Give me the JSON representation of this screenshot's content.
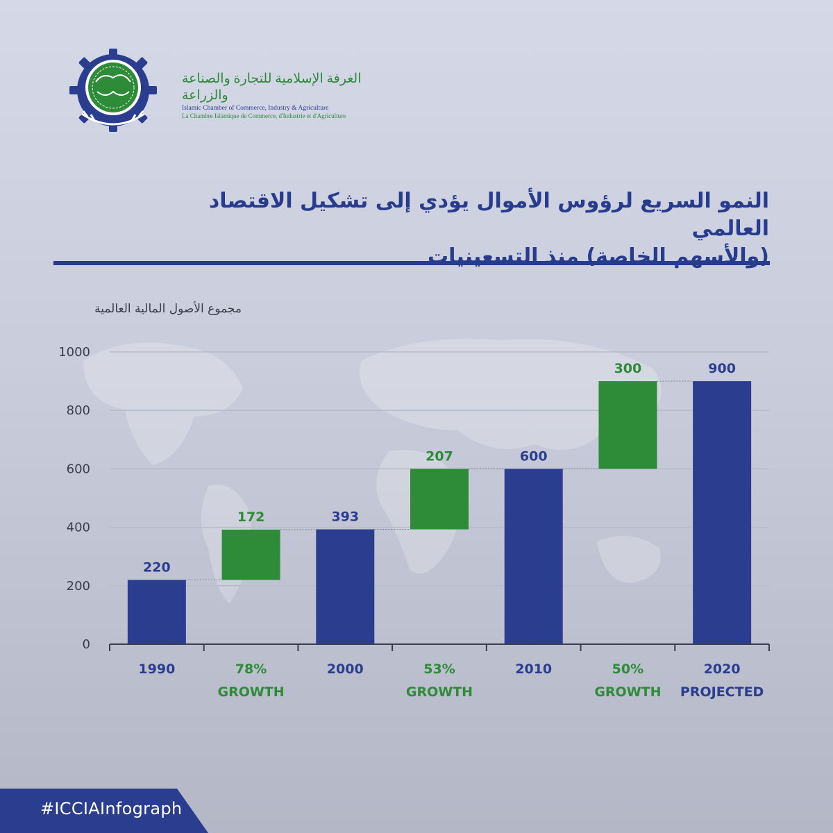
{
  "organization": {
    "name_ar": "الغرفة الإسلامية للتجارة والصناعة والزراعة",
    "name_en": "Islamic Chamber of Commerce, Industry & Agriculture",
    "name_fr": "La Chambre Islamique de Commerce, d'Industrie et d'Agriculture"
  },
  "title_line1": "النمو السريع لرؤوس الأموال يؤدي إلى تشكيل الاقتصاد العالمي",
  "title_line2": "(والأسهم الخاصة) منذ التسعينيات",
  "hashtag": "#ICCIAInfograph",
  "colors": {
    "total": "#2a3d8f",
    "growth": "#2e8b38",
    "growth_text": "#2e8b38",
    "total_text": "#2a3d8f",
    "accent": "#283c8e"
  },
  "chart_data": {
    "type": "bar",
    "subtype": "waterfall",
    "ylabel": "مجموع الأصول المالية العالمية",
    "ylim": [
      0,
      1000
    ],
    "yticks": [
      0,
      200,
      400,
      600,
      800,
      1000
    ],
    "grid": true,
    "bars": [
      {
        "label": [
          "1990"
        ],
        "kind": "total",
        "base": 0,
        "value": 220,
        "value_label": "220"
      },
      {
        "label": [
          "78%",
          "GROWTH"
        ],
        "kind": "growth",
        "base": 220,
        "value": 172,
        "value_label": "172"
      },
      {
        "label": [
          "2000"
        ],
        "kind": "total",
        "base": 0,
        "value": 393,
        "value_label": "393"
      },
      {
        "label": [
          "53%",
          "GROWTH"
        ],
        "kind": "growth",
        "base": 393,
        "value": 207,
        "value_label": "207"
      },
      {
        "label": [
          "2010"
        ],
        "kind": "total",
        "base": 0,
        "value": 600,
        "value_label": "600"
      },
      {
        "label": [
          "50%",
          "GROWTH"
        ],
        "kind": "growth",
        "base": 600,
        "value": 300,
        "value_label": "300"
      },
      {
        "label": [
          "2020",
          "PROJECTED"
        ],
        "kind": "total",
        "base": 0,
        "value": 900,
        "value_label": "900"
      }
    ]
  }
}
